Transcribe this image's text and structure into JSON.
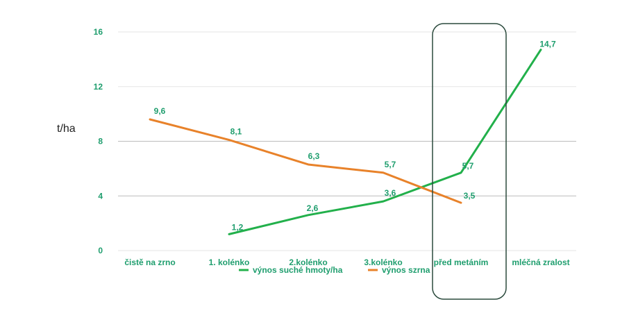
{
  "chart_data": {
    "type": "line",
    "title": "",
    "ylabel": "t/ha",
    "xlabel": "",
    "categories": [
      "čistě na zrno",
      "1. kolénko",
      "2.kolénko",
      "3.kolénko",
      "před metáním",
      "mléčná zralost"
    ],
    "ylim": [
      0,
      16
    ],
    "yticks": [
      0,
      4,
      8,
      12,
      16
    ],
    "grid": true,
    "legend_position": "bottom",
    "series": [
      {
        "name": "výnos suché hmoty/ha",
        "color": "#22b04b",
        "values": [
          null,
          1.2,
          2.6,
          3.6,
          5.7,
          14.7
        ],
        "labels": [
          "",
          "1,2",
          "2,6",
          "3,6",
          "5,7",
          "14,7"
        ]
      },
      {
        "name": "výnos szrna",
        "color": "#e8822a",
        "values": [
          9.6,
          8.1,
          6.3,
          5.7,
          3.5,
          null
        ],
        "labels": [
          "9,6",
          "8,1",
          "6,3",
          "5,7",
          "3,5",
          ""
        ]
      }
    ],
    "highlight": {
      "category": "před metáním",
      "shape": "rounded-rectangle",
      "color": "#2b4a3d"
    },
    "label_color": "#1f9e6e",
    "grid_color_major": "#bbbbbb",
    "grid_color_minor": "#e6e6e6"
  }
}
